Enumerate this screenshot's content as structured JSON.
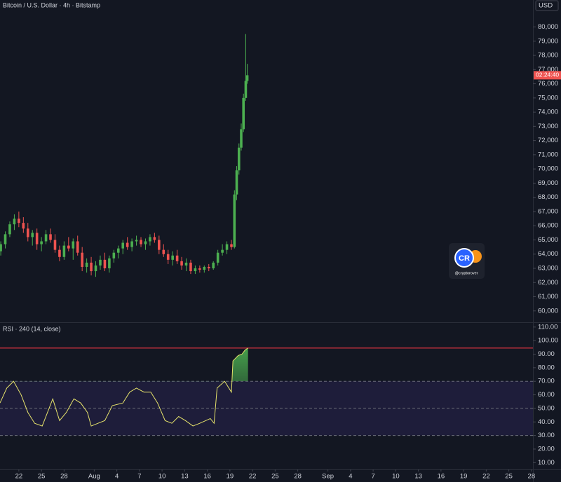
{
  "chart_data": [
    {
      "type": "candlestick",
      "title": "Bitcoin / U.S. Dollar · 4h · Bitstamp",
      "unit_label": "USD",
      "countdown": "02:24:40",
      "up_color": "#4caf50",
      "down_color": "#ef5350",
      "xlim": [
        19.5,
        90.2
      ],
      "ylim": [
        59200,
        81900
      ],
      "yticks": [
        {
          "value": 60000,
          "label": "60,000"
        },
        {
          "value": 61000,
          "label": "61,000"
        },
        {
          "value": 62000,
          "label": "62,000"
        },
        {
          "value": 63000,
          "label": "63,000"
        },
        {
          "value": 64000,
          "label": "64,000"
        },
        {
          "value": 65000,
          "label": "65,000"
        },
        {
          "value": 66000,
          "label": "66,000"
        },
        {
          "value": 67000,
          "label": "67,000"
        },
        {
          "value": 68000,
          "label": "68,000"
        },
        {
          "value": 69000,
          "label": "69,000"
        },
        {
          "value": 70000,
          "label": "70,000"
        },
        {
          "value": 71000,
          "label": "71,000"
        },
        {
          "value": 72000,
          "label": "72,000"
        },
        {
          "value": 73000,
          "label": "73,000"
        },
        {
          "value": 74000,
          "label": "74,000"
        },
        {
          "value": 75000,
          "label": "75,000"
        },
        {
          "value": 76000,
          "label": "76,000"
        },
        {
          "value": 77000,
          "label": "77,000"
        },
        {
          "value": 78000,
          "label": "78,000"
        },
        {
          "value": 79000,
          "label": "79,000"
        },
        {
          "value": 80000,
          "label": "80,000"
        }
      ],
      "x": [
        19.6,
        20.2,
        20.8,
        21.4,
        22.0,
        22.6,
        23.2,
        23.8,
        24.4,
        25.0,
        25.6,
        26.2,
        26.8,
        27.4,
        28.0,
        28.6,
        29.2,
        29.8,
        30.4,
        31.0,
        31.6,
        32.2,
        32.8,
        33.4,
        34.0,
        34.6,
        35.2,
        35.8,
        36.4,
        37.0,
        37.6,
        38.2,
        38.8,
        39.4,
        40.0,
        40.6,
        41.2,
        41.8,
        42.4,
        43.0,
        43.6,
        44.2,
        44.8,
        45.4,
        46.0,
        46.6,
        47.2,
        47.8,
        48.4,
        49.0,
        49.6,
        50.2,
        50.6,
        50.9,
        51.2,
        51.5,
        51.8,
        52.1,
        52.3
      ],
      "open": [
        64200,
        64700,
        65400,
        66100,
        66500,
        66200,
        65800,
        65200,
        65500,
        64700,
        64900,
        65400,
        65000,
        64300,
        63800,
        64600,
        64400,
        64900,
        64100,
        63100,
        63400,
        62800,
        63200,
        63600,
        63000,
        63700,
        64100,
        64400,
        64800,
        64500,
        64900,
        65000,
        64700,
        64900,
        65200,
        65000,
        64300,
        64000,
        63600,
        63900,
        63500,
        63200,
        63400,
        62800,
        63000,
        62900,
        63100,
        63000,
        63400,
        64100,
        64300,
        64700,
        64500,
        68200,
        69900,
        71500,
        72800,
        75000,
        76200
      ],
      "high": [
        64900,
        65600,
        66300,
        66800,
        67000,
        66600,
        66200,
        65700,
        65800,
        65200,
        65700,
        65800,
        65400,
        64600,
        64900,
        65200,
        65100,
        65300,
        64500,
        63700,
        63800,
        63500,
        63900,
        64100,
        63900,
        64300,
        64600,
        65000,
        65200,
        65100,
        65300,
        65200,
        65100,
        65400,
        65500,
        65300,
        64700,
        64300,
        64200,
        64300,
        63800,
        63700,
        63600,
        63200,
        63200,
        63200,
        63300,
        63500,
        64300,
        64700,
        64900,
        65000,
        68500,
        70200,
        71800,
        73200,
        75300,
        79500,
        77400
      ],
      "low": [
        63900,
        64400,
        65200,
        65700,
        65900,
        65500,
        64900,
        64600,
        64300,
        64200,
        64700,
        64800,
        64100,
        63500,
        63600,
        64200,
        63600,
        63900,
        62800,
        62700,
        62500,
        62400,
        62900,
        62800,
        62700,
        63400,
        63700,
        64000,
        64300,
        64200,
        64600,
        64500,
        64300,
        64600,
        64800,
        64000,
        63800,
        63300,
        63200,
        63300,
        62900,
        62800,
        62600,
        62600,
        62700,
        62700,
        62800,
        62900,
        63200,
        63900,
        64000,
        64300,
        64400,
        67800,
        69600,
        71300,
        72600,
        74800,
        76000
      ],
      "close": [
        64700,
        65400,
        66100,
        66500,
        66200,
        65800,
        65200,
        65500,
        64700,
        64900,
        65400,
        65000,
        64300,
        63800,
        64600,
        64400,
        64900,
        64100,
        63100,
        63400,
        62800,
        63200,
        63600,
        63000,
        63700,
        64100,
        64400,
        64800,
        64500,
        64900,
        65000,
        64700,
        64900,
        65200,
        65000,
        64300,
        64000,
        63600,
        63900,
        63500,
        63200,
        63400,
        62800,
        63000,
        62900,
        63100,
        63000,
        63400,
        64100,
        64300,
        64700,
        64500,
        68200,
        69900,
        71500,
        72800,
        75000,
        76200,
        76600
      ]
    },
    {
      "type": "line",
      "title": "RSI · 240 (14, close)",
      "color": "#e6e36b",
      "fill_color": "#4caf50",
      "xlim": [
        19.5,
        90.2
      ],
      "ylim": [
        5,
        113
      ],
      "levels": [
        70,
        50,
        30
      ],
      "band": [
        30,
        70
      ],
      "band_color": "#1e1d3a",
      "last_value_line": 94.5,
      "last_value_color": "#f23645",
      "yticks": [
        {
          "value": 10,
          "label": "10.00"
        },
        {
          "value": 20,
          "label": "20.00"
        },
        {
          "value": 30,
          "label": "30.00"
        },
        {
          "value": 40,
          "label": "40.00"
        },
        {
          "value": 50,
          "label": "50.00"
        },
        {
          "value": 60,
          "label": "60.00"
        },
        {
          "value": 70,
          "label": "70.00"
        },
        {
          "value": 80,
          "label": "80.00"
        },
        {
          "value": 90,
          "label": "90.00"
        },
        {
          "value": 100,
          "label": "100.00"
        },
        {
          "value": 110,
          "label": "110.00"
        }
      ],
      "xticks": [
        {
          "value": 22,
          "label": "22"
        },
        {
          "value": 25,
          "label": "25"
        },
        {
          "value": 28,
          "label": "28"
        },
        {
          "value": 32,
          "label": "Aug"
        },
        {
          "value": 35,
          "label": "4"
        },
        {
          "value": 38,
          "label": "7"
        },
        {
          "value": 41,
          "label": "10"
        },
        {
          "value": 44,
          "label": "13"
        },
        {
          "value": 47,
          "label": "16"
        },
        {
          "value": 50,
          "label": "19"
        },
        {
          "value": 53,
          "label": "22"
        },
        {
          "value": 56,
          "label": "25"
        },
        {
          "value": 59,
          "label": "28"
        },
        {
          "value": 63,
          "label": "Sep"
        },
        {
          "value": 66,
          "label": "4"
        },
        {
          "value": 69,
          "label": "7"
        },
        {
          "value": 72,
          "label": "10"
        },
        {
          "value": 75,
          "label": "13"
        },
        {
          "value": 78,
          "label": "16"
        },
        {
          "value": 81,
          "label": "19"
        },
        {
          "value": 84,
          "label": "22"
        },
        {
          "value": 87,
          "label": "25"
        },
        {
          "value": 90,
          "label": "28"
        }
      ],
      "x": [
        19.5,
        20.4,
        21.3,
        22.3,
        23.2,
        24.1,
        25.1,
        26.5,
        27.4,
        28.3,
        29.3,
        30.2,
        31.1,
        31.6,
        32.5,
        33.4,
        34.4,
        35.8,
        36.7,
        37.6,
        38.6,
        39.5,
        40.4,
        41.4,
        42.3,
        43.2,
        44.1,
        45.1,
        46.0,
        47.4,
        47.9,
        48.3,
        49.3,
        50.2,
        50.4,
        51.1,
        51.6,
        52.0,
        52.4
      ],
      "values": [
        54,
        65,
        70,
        60,
        47,
        39,
        37,
        57,
        41,
        47,
        57,
        54,
        47,
        37,
        39,
        41,
        52,
        54,
        62,
        65,
        62,
        62,
        54,
        41,
        39,
        44,
        41,
        37,
        39,
        42.5,
        39,
        65,
        70,
        62,
        85,
        89,
        90,
        93,
        94.5
      ]
    }
  ],
  "watermark": {
    "logo": "CR",
    "handle": "@cryptorover"
  }
}
